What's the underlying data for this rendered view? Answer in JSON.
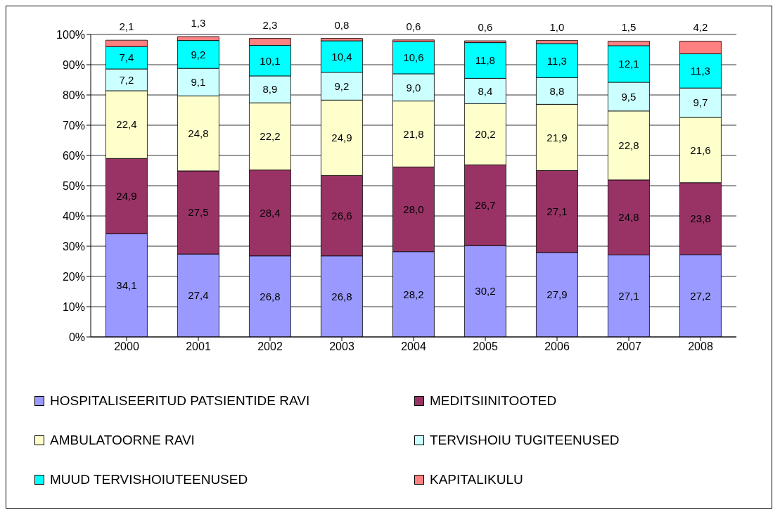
{
  "chart_data": {
    "type": "bar",
    "stacked": true,
    "categories": [
      "2000",
      "2001",
      "2002",
      "2003",
      "2004",
      "2005",
      "2006",
      "2007",
      "2008"
    ],
    "series": [
      {
        "name": "HOSPITALISEERITUD PATSIENTIDE RAVI",
        "color": "#9999ff",
        "values": [
          34.1,
          27.4,
          26.8,
          26.8,
          28.2,
          30.2,
          27.9,
          27.1,
          27.2
        ],
        "value_labels": [
          "34,1",
          "27,4",
          "26,8",
          "26,8",
          "28,2",
          "30,2",
          "27,9",
          "27,1",
          "27,2"
        ]
      },
      {
        "name": "MEDITSIINITOOTED",
        "color": "#993366",
        "values": [
          24.9,
          27.5,
          28.4,
          26.6,
          28.0,
          26.7,
          27.1,
          24.8,
          23.8
        ],
        "value_labels": [
          "24,9",
          "27,5",
          "28,4",
          "26,6",
          "28,0",
          "26,7",
          "27,1",
          "24,8",
          "23,8"
        ]
      },
      {
        "name": "AMBULATOORNE RAVI",
        "color": "#ffffcc",
        "values": [
          22.4,
          24.8,
          22.2,
          24.9,
          21.8,
          20.2,
          21.9,
          22.8,
          21.6
        ],
        "value_labels": [
          "22,4",
          "24,8",
          "22,2",
          "24,9",
          "21,8",
          "20,2",
          "21,9",
          "22,8",
          "21,6"
        ]
      },
      {
        "name": "TERVISHOIU TUGITEENUSED",
        "color": "#ccffff",
        "values": [
          7.2,
          9.1,
          8.9,
          9.2,
          9.0,
          8.4,
          8.8,
          9.5,
          9.7
        ],
        "value_labels": [
          "7,2",
          "9,1",
          "8,9",
          "9,2",
          "9,0",
          "8,4",
          "8,8",
          "9,5",
          "9,7"
        ]
      },
      {
        "name": "MUUD TERVISHOIUTEENUSED",
        "color": "#00ffff",
        "values": [
          7.4,
          9.2,
          10.1,
          10.4,
          10.6,
          11.8,
          11.3,
          12.1,
          11.3
        ],
        "value_labels": [
          "7,4",
          "9,2",
          "10,1",
          "10,4",
          "10,6",
          "11,8",
          "11,3",
          "12,1",
          "11,3"
        ]
      },
      {
        "name": "KAPITALIKULU",
        "color": "#ff8080",
        "values": [
          2.1,
          1.3,
          2.3,
          0.8,
          0.6,
          0.6,
          1.0,
          1.5,
          4.2
        ],
        "value_labels": [
          "2,1",
          "1,3",
          "2,3",
          "0,8",
          "0,6",
          "0,6",
          "1,0",
          "1,5",
          "4,2"
        ]
      }
    ],
    "ylim": [
      0,
      100
    ],
    "yticks": [
      {
        "value": 0,
        "label": "0%"
      },
      {
        "value": 10,
        "label": "10%"
      },
      {
        "value": 20,
        "label": "20%"
      },
      {
        "value": 30,
        "label": "30%"
      },
      {
        "value": 40,
        "label": "40%"
      },
      {
        "value": 50,
        "label": "50%"
      },
      {
        "value": 60,
        "label": "60%"
      },
      {
        "value": 70,
        "label": "70%"
      },
      {
        "value": 80,
        "label": "80%"
      },
      {
        "value": 90,
        "label": "90%"
      },
      {
        "value": 100,
        "label": "100%"
      }
    ],
    "grid": "y",
    "legend": "bottom"
  }
}
